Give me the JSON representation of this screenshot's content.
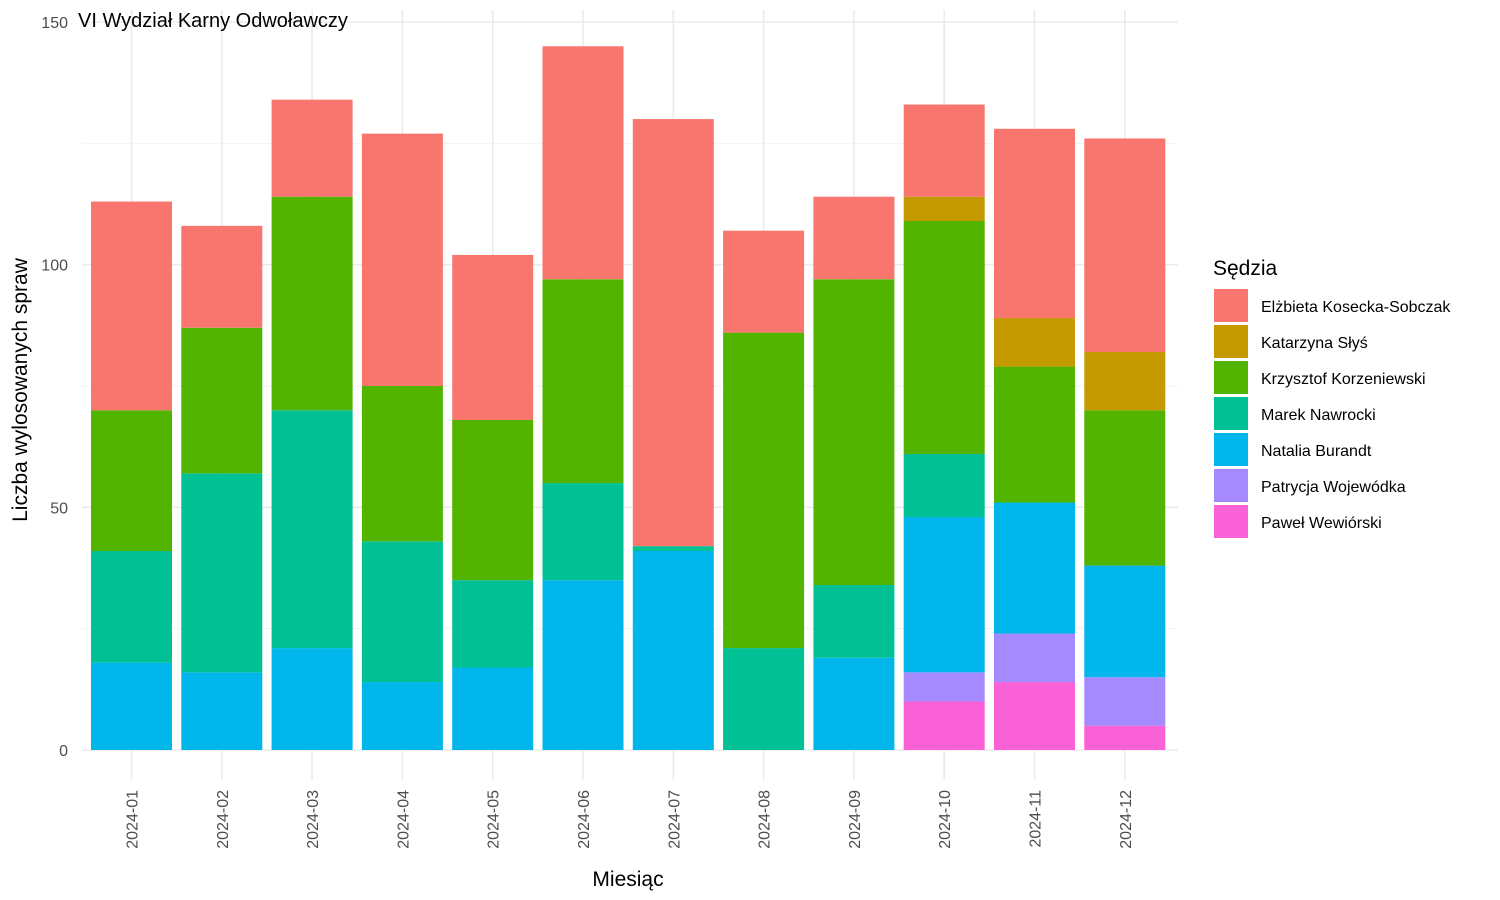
{
  "chart_data": {
    "type": "bar",
    "stacked": true,
    "title": "VI Wydział Karny Odwoławczy",
    "xlabel": "Miesiąc",
    "ylabel": "Liczba wylosowanych spraw",
    "ylim": [
      0,
      150
    ],
    "yticks": [
      0,
      50,
      100,
      150
    ],
    "grid": true,
    "legend_position": "right",
    "legend_title": "Sędzia",
    "categories": [
      "2024-01",
      "2024-02",
      "2024-03",
      "2024-04",
      "2024-05",
      "2024-06",
      "2024-07",
      "2024-08",
      "2024-09",
      "2024-10",
      "2024-11",
      "2024-12"
    ],
    "series": [
      {
        "name": "Elżbieta Kosecka-Sobczak",
        "color": "#F8766D",
        "values": [
          43,
          21,
          20,
          52,
          34,
          48,
          88,
          21,
          17,
          19,
          39,
          44
        ]
      },
      {
        "name": "Katarzyna Słyś",
        "color": "#C49A00",
        "values": [
          0,
          0,
          0,
          0,
          0,
          0,
          0,
          0,
          0,
          5,
          10,
          12
        ]
      },
      {
        "name": "Krzysztof Korzeniewski",
        "color": "#53B400",
        "values": [
          29,
          30,
          44,
          32,
          33,
          42,
          0,
          65,
          63,
          48,
          28,
          32
        ]
      },
      {
        "name": "Marek Nawrocki",
        "color": "#00C094",
        "values": [
          23,
          41,
          49,
          29,
          18,
          20,
          1,
          21,
          15,
          13,
          0,
          0
        ]
      },
      {
        "name": "Natalia Burandt",
        "color": "#00B6EB",
        "values": [
          18,
          16,
          21,
          14,
          17,
          35,
          41,
          0,
          19,
          32,
          27,
          23
        ]
      },
      {
        "name": "Patrycja Wojewódka",
        "color": "#A58AFF",
        "values": [
          0,
          0,
          0,
          0,
          0,
          0,
          0,
          0,
          0,
          6,
          10,
          10
        ]
      },
      {
        "name": "Paweł Wewiórski",
        "color": "#FB61D7",
        "values": [
          0,
          0,
          0,
          0,
          0,
          0,
          0,
          0,
          0,
          10,
          14,
          5
        ]
      }
    ]
  }
}
